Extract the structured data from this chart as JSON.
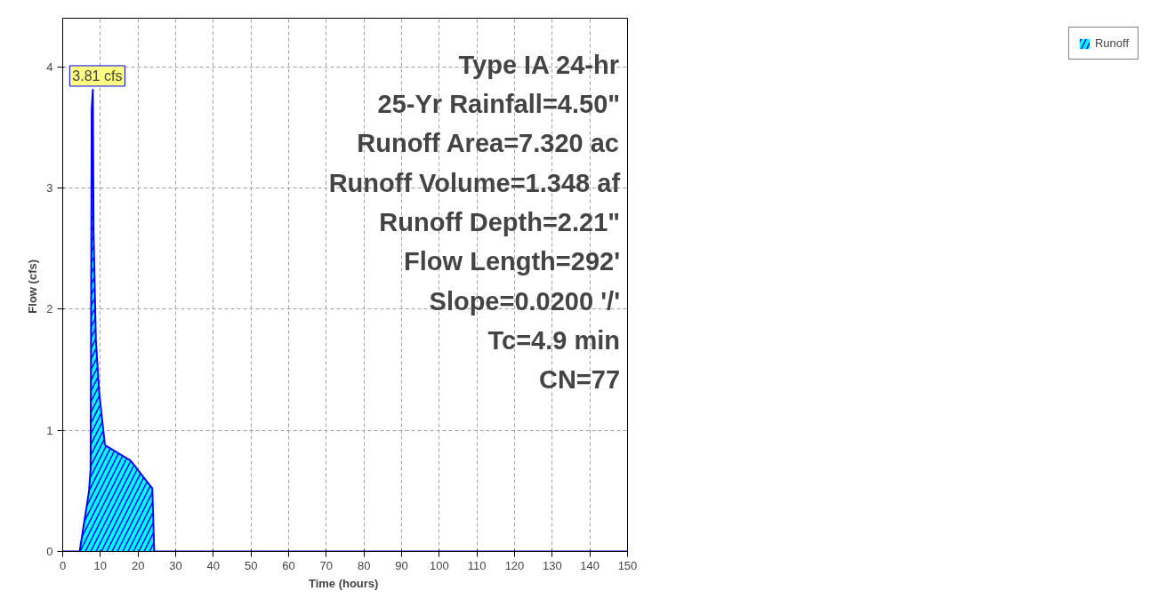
{
  "chart_data": {
    "type": "area",
    "xlabel": "Time  (hours)",
    "ylabel": "Flow  (cfs)",
    "xlim": [
      0,
      150
    ],
    "ylim": [
      0,
      4.4
    ],
    "xticks": [
      0,
      10,
      20,
      30,
      40,
      50,
      60,
      70,
      80,
      90,
      100,
      110,
      120,
      130,
      140,
      150
    ],
    "yticks": [
      0,
      1,
      2,
      3,
      4
    ],
    "grid": true,
    "legend": "top right",
    "series": [
      {
        "name": "Runoff",
        "color": "#00ffff",
        "x": [
          0,
          4.5,
          5.5,
          7.0,
          7.4,
          7.5,
          7.7,
          8.0,
          8.2,
          8.8,
          9.7,
          11.2,
          12.1,
          18,
          23.8,
          24.3,
          30,
          150
        ],
        "values": [
          0,
          0,
          0.2,
          0.5,
          0.68,
          1.56,
          3.65,
          3.81,
          2.63,
          1.75,
          1.31,
          0.88,
          0.86,
          0.75,
          0.52,
          0,
          0,
          0
        ]
      }
    ],
    "annotations": [
      {
        "text": "3.81 cfs",
        "x": 8.0,
        "y": 3.81
      },
      "Type IA 24-hr",
      "25-Yr Rainfall=4.50\"",
      "Runoff Area=7.320 ac",
      "Runoff Volume=1.348 af",
      "Runoff Depth=2.21\"",
      "Flow Length=292'",
      "Slope=0.0200 '/'",
      "Tc=4.9 min",
      "CN=77"
    ]
  }
}
